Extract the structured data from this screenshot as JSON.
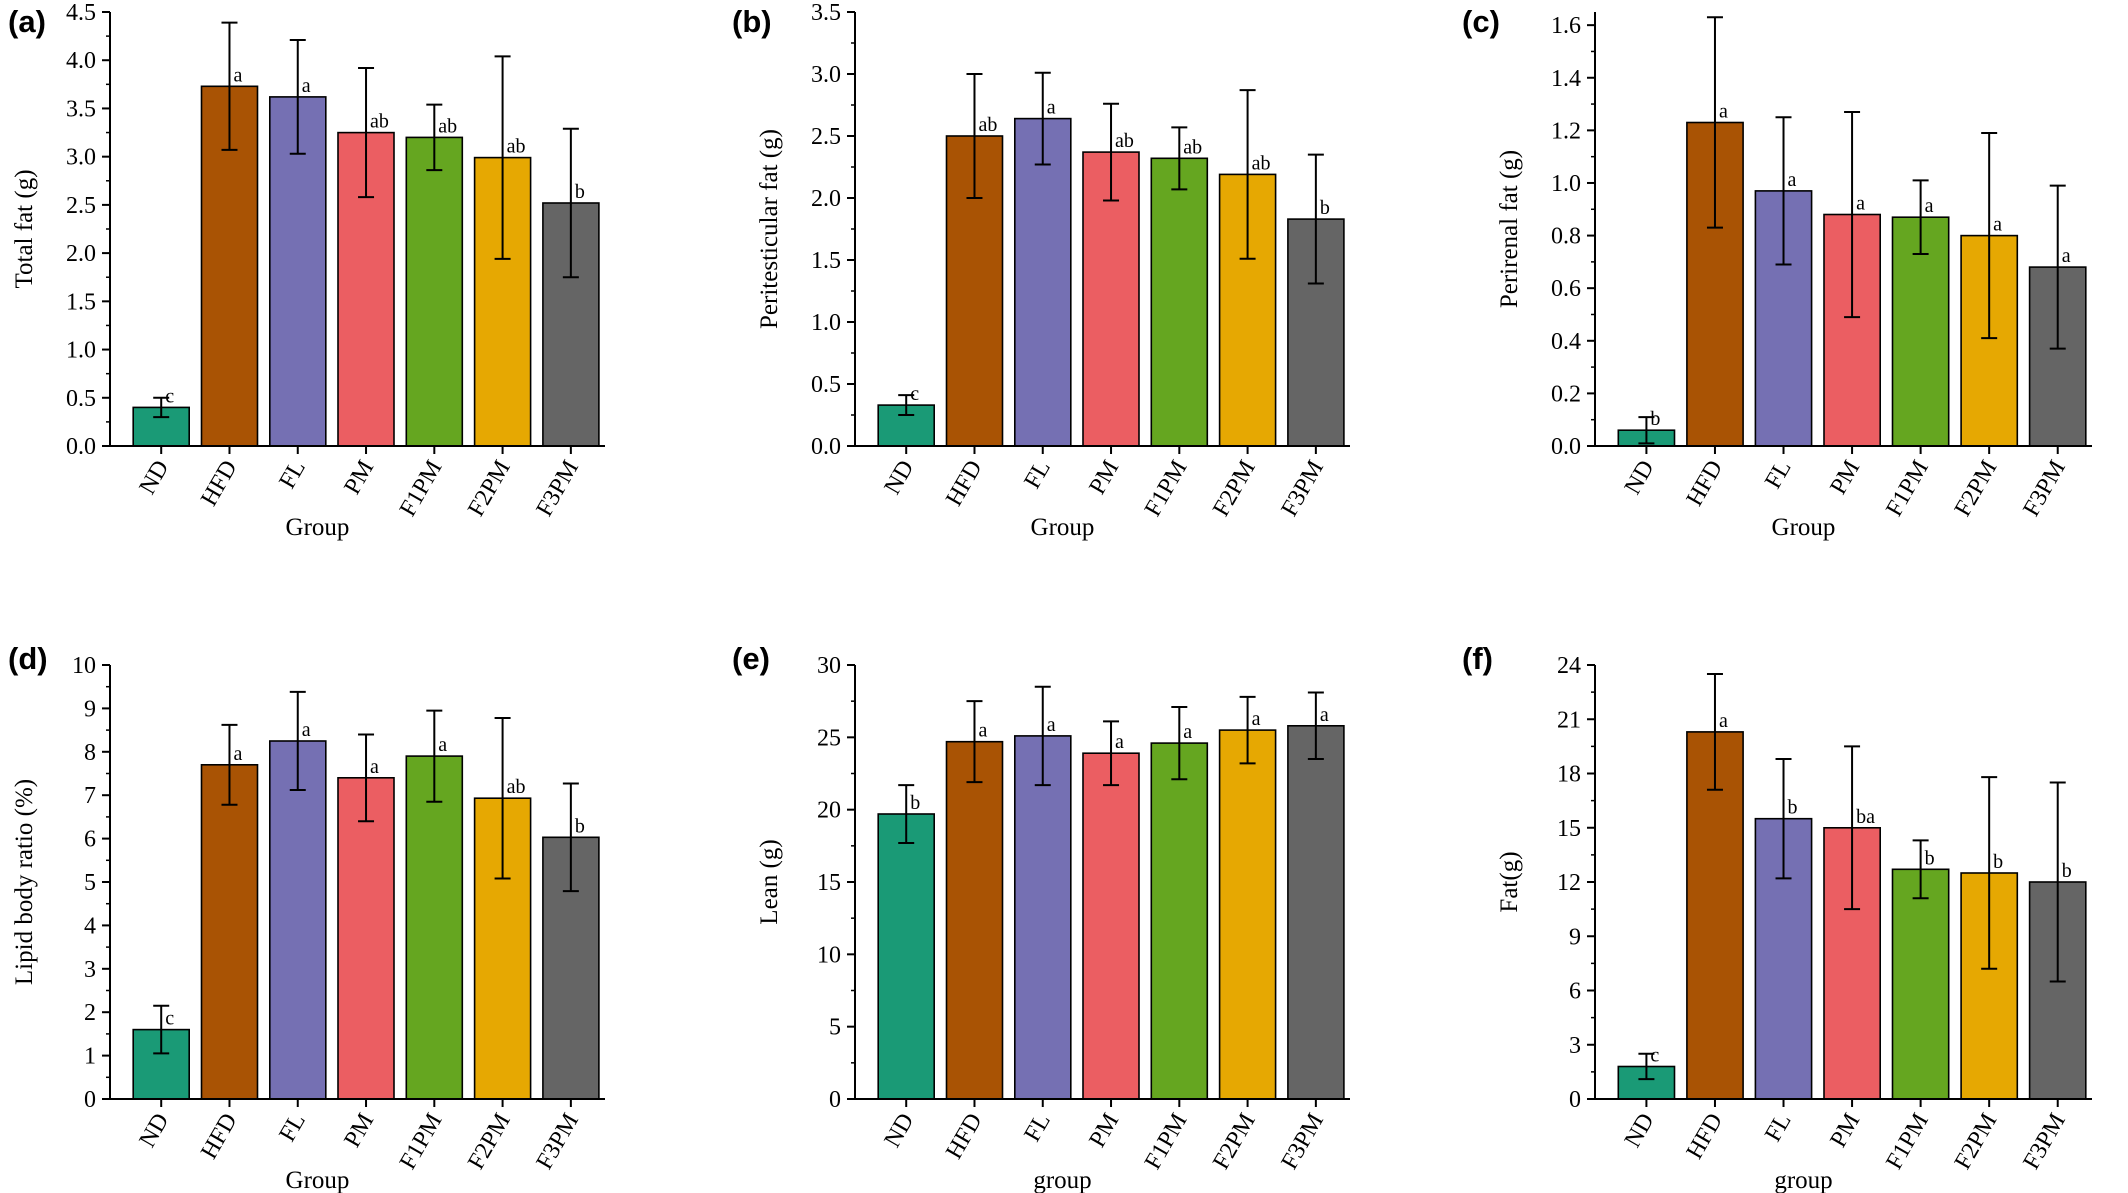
{
  "colors": {
    "ND": "#1a9a76",
    "HFD": "#a95304",
    "FL": "#7570b3",
    "PM": "#eb5e62",
    "F1PM": "#65a620",
    "F2PM": "#e6a802",
    "F3PM": "#656565"
  },
  "chart_data": [
    {
      "panel": "(a)",
      "type": "bar",
      "categories": [
        "ND",
        "HFD",
        "FL",
        "PM",
        "F1PM",
        "F2PM",
        "F3PM"
      ],
      "values": [
        0.4,
        3.73,
        3.62,
        3.25,
        3.2,
        2.99,
        2.52
      ],
      "errors": [
        0.1,
        0.66,
        0.59,
        0.67,
        0.34,
        1.05,
        0.77
      ],
      "labels": [
        "c",
        "a",
        "a",
        "ab",
        "ab",
        "ab",
        "b"
      ],
      "xlabel": "Group",
      "ylabel": "Total fat (g)",
      "ylim": [
        0,
        4.5
      ],
      "yticks": [
        0,
        0.5,
        1,
        1.5,
        2,
        2.5,
        3,
        3.5,
        4,
        4.5
      ],
      "tickLabels": [
        "0.0",
        "0.5",
        "1.0",
        "1.5",
        "2.0",
        "2.5",
        "3.0",
        "3.5",
        "4.0",
        "4.5"
      ]
    },
    {
      "panel": "(b)",
      "type": "bar",
      "categories": [
        "ND",
        "HFD",
        "FL",
        "PM",
        "F1PM",
        "F2PM",
        "F3PM"
      ],
      "values": [
        0.33,
        2.5,
        2.64,
        2.37,
        2.32,
        2.19,
        1.83
      ],
      "errors": [
        0.08,
        0.5,
        0.37,
        0.39,
        0.25,
        0.68,
        0.52
      ],
      "labels": [
        "c",
        "ab",
        "a",
        "ab",
        "ab",
        "ab",
        "b"
      ],
      "xlabel": "Group",
      "ylabel": "Peritesticular fat (g)",
      "ylim": [
        0,
        3.5
      ],
      "yticks": [
        0,
        0.5,
        1,
        1.5,
        2,
        2.5,
        3,
        3.5
      ],
      "tickLabels": [
        "0.0",
        "0.5",
        "1.0",
        "1.5",
        "2.0",
        "2.5",
        "3.0",
        "3.5"
      ]
    },
    {
      "panel": "(c)",
      "type": "bar",
      "categories": [
        "ND",
        "HFD",
        "FL",
        "PM",
        "F1PM",
        "F2PM",
        "F3PM"
      ],
      "values": [
        0.06,
        1.23,
        0.97,
        0.88,
        0.87,
        0.8,
        0.68
      ],
      "errors": [
        0.05,
        0.4,
        0.28,
        0.39,
        0.14,
        0.39,
        0.31
      ],
      "labels": [
        "b",
        "a",
        "a",
        "a",
        "a",
        "a",
        "a"
      ],
      "xlabel": "Group",
      "ylabel": "Perirenal fat (g)",
      "ylim": [
        0,
        1.65
      ],
      "yticks": [
        0,
        0.2,
        0.4,
        0.6,
        0.8,
        1.0,
        1.2,
        1.4,
        1.6
      ],
      "tickLabels": [
        "0.0",
        "0.2",
        "0.4",
        "0.6",
        "0.8",
        "1.0",
        "1.2",
        "1.4",
        "1.6"
      ]
    },
    {
      "panel": "(d)",
      "type": "bar",
      "categories": [
        "ND",
        "HFD",
        "FL",
        "PM",
        "F1PM",
        "F2PM",
        "F3PM"
      ],
      "values": [
        1.6,
        7.7,
        8.25,
        7.4,
        7.9,
        6.93,
        6.03
      ],
      "errors": [
        0.55,
        0.92,
        1.13,
        1.0,
        1.05,
        1.85,
        1.24
      ],
      "labels": [
        "c",
        "a",
        "a",
        "a",
        "a",
        "ab",
        "b"
      ],
      "xlabel": "Group",
      "ylabel": "Lipid body ratio (%)",
      "ylim": [
        0,
        10
      ],
      "yticks": [
        0,
        1,
        2,
        3,
        4,
        5,
        6,
        7,
        8,
        9,
        10
      ],
      "tickLabels": [
        "0",
        "1",
        "2",
        "3",
        "4",
        "5",
        "6",
        "7",
        "8",
        "9",
        "10"
      ]
    },
    {
      "panel": "(e)",
      "type": "bar",
      "categories": [
        "ND",
        "HFD",
        "FL",
        "PM",
        "F1PM",
        "F2PM",
        "F3PM"
      ],
      "values": [
        19.7,
        24.7,
        25.1,
        23.9,
        24.6,
        25.5,
        25.8
      ],
      "errors": [
        2.0,
        2.8,
        3.4,
        2.2,
        2.5,
        2.3,
        2.3
      ],
      "labels": [
        "b",
        "a",
        "a",
        "a",
        "a",
        "a",
        "a"
      ],
      "xlabel": "group",
      "ylabel": "Lean (g)",
      "ylim": [
        0,
        30
      ],
      "yticks": [
        0,
        5,
        10,
        15,
        20,
        25,
        30
      ],
      "tickLabels": [
        "0",
        "5",
        "10",
        "15",
        "20",
        "25",
        "30"
      ]
    },
    {
      "panel": "(f)",
      "type": "bar",
      "categories": [
        "ND",
        "HFD",
        "FL",
        "PM",
        "F1PM",
        "F2PM",
        "F3PM"
      ],
      "values": [
        1.8,
        20.3,
        15.5,
        15.0,
        12.7,
        12.5,
        12.0
      ],
      "errors": [
        0.7,
        3.2,
        3.3,
        4.5,
        1.6,
        5.3,
        5.5
      ],
      "labels": [
        "c",
        "a",
        "b",
        "ba",
        "b",
        "b",
        "b"
      ],
      "xlabel": "group",
      "ylabel": "Fat(g)",
      "ylim": [
        0,
        24
      ],
      "yticks": [
        0,
        3,
        6,
        9,
        12,
        15,
        18,
        21,
        24
      ],
      "tickLabels": [
        "0",
        "3",
        "6",
        "9",
        "12",
        "15",
        "18",
        "21",
        "24"
      ]
    }
  ]
}
